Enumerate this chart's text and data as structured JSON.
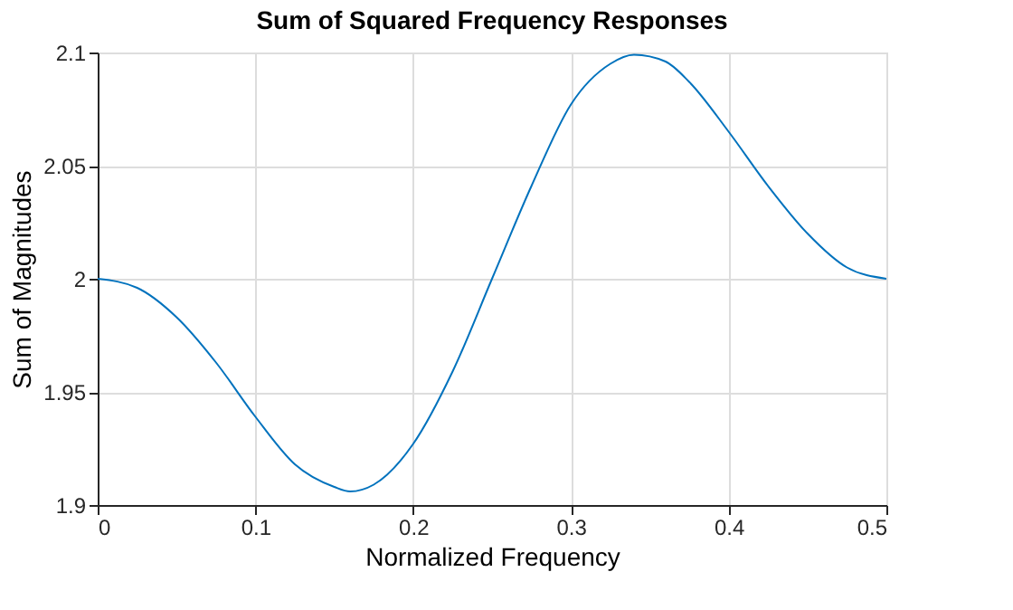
{
  "chart_data": {
    "type": "line",
    "title": "Sum of Squared Frequency Responses",
    "xlabel": "Normalized Frequency",
    "ylabel": "Sum of Magnitudes",
    "x": [
      0,
      0.025,
      0.05,
      0.075,
      0.1,
      0.125,
      0.15,
      0.16,
      0.175,
      0.2,
      0.225,
      0.25,
      0.275,
      0.3,
      0.325,
      0.34,
      0.36,
      0.375,
      0.4,
      0.425,
      0.45,
      0.475,
      0.5
    ],
    "series": [
      {
        "color": "#0072bd",
        "values": [
          2.0,
          1.996,
          1.983,
          1.963,
          1.939,
          1.918,
          1.908,
          1.906,
          1.909,
          1.927,
          1.959,
          2.0,
          2.041,
          2.077,
          2.095,
          2.099,
          2.096,
          2.087,
          2.065,
          2.041,
          2.02,
          2.005,
          2.0
        ]
      }
    ],
    "xlim": [
      0,
      0.5
    ],
    "xticks": [
      0,
      0.1,
      0.2,
      0.3,
      0.4,
      0.5
    ],
    "ylim": [
      1.9,
      2.1
    ],
    "yticks": [
      1.9,
      1.95,
      2,
      2.05,
      2.1
    ],
    "grid": true
  }
}
